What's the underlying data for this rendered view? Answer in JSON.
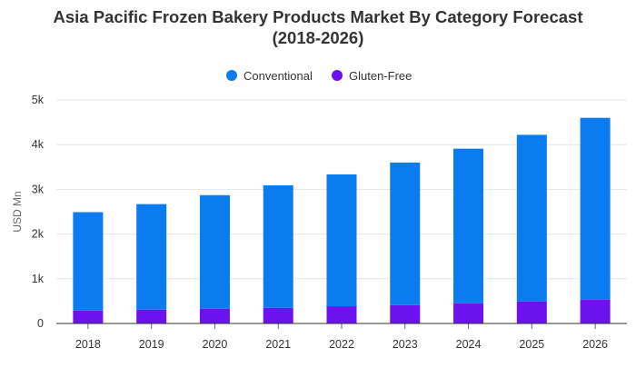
{
  "chart_data": {
    "type": "bar",
    "stacked": true,
    "title_line1": "Asia Pacific Frozen Bakery Products Market By Category Forecast",
    "title_line2": "(2018-2026)",
    "xlabel": "",
    "ylabel": "USD Mn",
    "categories": [
      "2018",
      "2019",
      "2020",
      "2021",
      "2022",
      "2023",
      "2024",
      "2025",
      "2026"
    ],
    "series": [
      {
        "name": "Gluten-Free",
        "color": "#6b12ee",
        "values": [
          290,
          310,
          330,
          350,
          385,
          410,
          450,
          490,
          530
        ]
      },
      {
        "name": "Conventional",
        "color": "#0a7cf0",
        "values": [
          2200,
          2360,
          2540,
          2740,
          2950,
          3190,
          3460,
          3730,
          4070
        ]
      }
    ],
    "legend_order": [
      "Conventional",
      "Gluten-Free"
    ],
    "legend_position": "top-center",
    "ylim": [
      0,
      5000
    ],
    "yticks": [
      {
        "value": 0,
        "label": "0"
      },
      {
        "value": 1000,
        "label": "1k"
      },
      {
        "value": 2000,
        "label": "2k"
      },
      {
        "value": 3000,
        "label": "3k"
      },
      {
        "value": 4000,
        "label": "4k"
      },
      {
        "value": 5000,
        "label": "5k"
      }
    ],
    "grid": true
  }
}
